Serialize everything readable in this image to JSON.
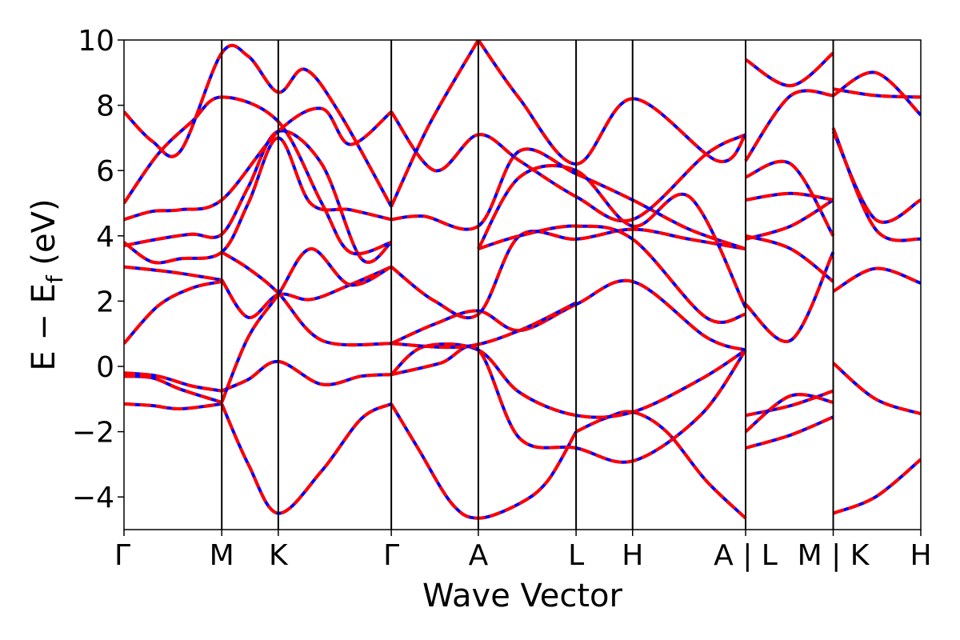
{
  "chart_data": {
    "type": "line",
    "title": "",
    "xlabel": "Wave Vector",
    "ylabel": "E − E_f (eV)",
    "ylabel_parts": {
      "main": "E − E",
      "sub": "f",
      "unit": " (eV)"
    },
    "ylim": [
      -5,
      10
    ],
    "yticks": [
      -4,
      -2,
      0,
      2,
      4,
      6,
      8,
      10
    ],
    "ytick_labels": [
      "−4",
      "−2",
      "0",
      "2",
      "4",
      "6",
      "8",
      "10"
    ],
    "xlim": [
      0,
      14.1
    ],
    "kpoints": [
      {
        "label": "Γ",
        "x": 0
      },
      {
        "label": "M",
        "x": 1.73
      },
      {
        "label": "K",
        "x": 2.73
      },
      {
        "label": "Γ",
        "x": 4.73
      },
      {
        "label": "A",
        "x": 6.27
      },
      {
        "label": "L",
        "x": 8.0
      },
      {
        "label": "H",
        "x": 9.0
      },
      {
        "label": "A | L",
        "x": 11.0
      },
      {
        "label": "M | K",
        "x": 12.55
      },
      {
        "label": "H",
        "x": 14.1
      }
    ],
    "vlines": [
      1.73,
      2.73,
      4.73,
      6.27,
      8.0,
      9.0,
      11.0,
      12.55
    ],
    "series_colors": {
      "solid": "#0000ff",
      "dashed": "#ff0000"
    },
    "grid": false,
    "legend": "none",
    "bands": [
      [
        [
          0,
          -1.15
        ],
        [
          0.5,
          -1.2
        ],
        [
          1.0,
          -1.3
        ],
        [
          1.73,
          -1.15
        ]
      ],
      [
        [
          1.73,
          -1.15
        ],
        [
          2.2,
          -3.0
        ],
        [
          2.73,
          -4.5
        ],
        [
          3.5,
          -3.2
        ],
        [
          4.2,
          -1.6
        ],
        [
          4.73,
          -1.15
        ]
      ],
      [
        [
          4.73,
          -1.15
        ],
        [
          5.2,
          -2.5
        ],
        [
          5.8,
          -4.2
        ],
        [
          6.27,
          -4.65
        ],
        [
          7.0,
          -4.2
        ],
        [
          7.5,
          -3.5
        ],
        [
          8.0,
          -2.0
        ]
      ],
      [
        [
          8.0,
          -2.0
        ],
        [
          8.5,
          -1.6
        ],
        [
          9.0,
          -1.4
        ],
        [
          9.6,
          -2.0
        ],
        [
          10.3,
          -3.5
        ],
        [
          11.0,
          -4.65
        ]
      ],
      [
        [
          0,
          -0.3
        ],
        [
          0.5,
          -0.35
        ],
        [
          1.0,
          -0.7
        ],
        [
          1.73,
          -1.1
        ]
      ],
      [
        [
          0,
          -0.2
        ],
        [
          0.6,
          -0.3
        ],
        [
          1.2,
          -0.6
        ],
        [
          1.73,
          -0.75
        ]
      ],
      [
        [
          1.73,
          -0.75
        ],
        [
          2.2,
          -0.4
        ],
        [
          2.73,
          0.15
        ],
        [
          3.5,
          -0.55
        ],
        [
          4.2,
          -0.3
        ],
        [
          4.73,
          -0.25
        ]
      ],
      [
        [
          4.73,
          -0.25
        ],
        [
          5.3,
          0.6
        ],
        [
          6.27,
          0.5
        ],
        [
          7.0,
          -0.8
        ],
        [
          8.0,
          -1.5
        ],
        [
          9.0,
          -1.4
        ],
        [
          10.2,
          -0.4
        ],
        [
          11.0,
          0.5
        ]
      ],
      [
        [
          4.73,
          -0.25
        ],
        [
          5.6,
          0.1
        ],
        [
          6.27,
          0.5
        ],
        [
          7.0,
          -2.2
        ],
        [
          8.0,
          -2.5
        ],
        [
          9.0,
          -2.9
        ],
        [
          10.2,
          -1.5
        ],
        [
          11.0,
          0.5
        ]
      ],
      [
        [
          0,
          0.7
        ],
        [
          0.6,
          1.85
        ],
        [
          1.2,
          2.4
        ],
        [
          1.73,
          2.6
        ]
      ],
      [
        [
          0,
          3.05
        ],
        [
          0.8,
          2.9
        ],
        [
          1.73,
          2.65
        ]
      ],
      [
        [
          1.73,
          2.65
        ],
        [
          2.2,
          1.5
        ],
        [
          2.73,
          2.2
        ],
        [
          3.3,
          2.05
        ],
        [
          4.0,
          2.5
        ],
        [
          4.73,
          3.05
        ]
      ],
      [
        [
          1.73,
          3.5
        ],
        [
          2.2,
          3.0
        ],
        [
          2.73,
          2.25
        ],
        [
          3.5,
          0.8
        ],
        [
          4.73,
          0.7
        ]
      ],
      [
        [
          4.73,
          0.7
        ],
        [
          5.5,
          1.3
        ],
        [
          6.27,
          1.7
        ],
        [
          7.0,
          1.1
        ],
        [
          8.0,
          1.9
        ],
        [
          9.0,
          2.6
        ],
        [
          10.3,
          0.9
        ],
        [
          11.0,
          0.5
        ]
      ],
      [
        [
          4.73,
          0.7
        ],
        [
          6.0,
          0.6
        ],
        [
          7.0,
          1.1
        ],
        [
          8.0,
          1.95
        ]
      ],
      [
        [
          1.73,
          -1.1
        ],
        [
          2.2,
          0.9
        ],
        [
          2.73,
          2.2
        ],
        [
          3.3,
          3.6
        ],
        [
          4.0,
          2.5
        ],
        [
          4.73,
          3.05
        ]
      ],
      [
        [
          4.73,
          3.05
        ],
        [
          5.5,
          2.0
        ],
        [
          6.27,
          1.6
        ],
        [
          7.0,
          4.0
        ],
        [
          8.0,
          3.9
        ],
        [
          9.0,
          4.2
        ],
        [
          10.0,
          3.9
        ],
        [
          11.0,
          3.6
        ]
      ],
      [
        [
          6.27,
          3.6
        ],
        [
          7.0,
          4.0
        ],
        [
          8.0,
          4.3
        ],
        [
          9.0,
          3.9
        ],
        [
          10.3,
          1.5
        ],
        [
          11.0,
          1.6
        ]
      ],
      [
        [
          0,
          3.8
        ],
        [
          0.5,
          3.2
        ],
        [
          1.0,
          3.3
        ],
        [
          1.73,
          3.5
        ],
        [
          2.2,
          5.0
        ],
        [
          2.73,
          7.0
        ],
        [
          3.3,
          5.0
        ],
        [
          4.0,
          4.8
        ],
        [
          4.73,
          4.5
        ]
      ],
      [
        [
          0,
          3.7
        ],
        [
          0.6,
          3.9
        ],
        [
          1.2,
          4.05
        ],
        [
          1.73,
          4.05
        ],
        [
          2.2,
          5.5
        ],
        [
          2.73,
          7.2
        ],
        [
          3.5,
          6.2
        ],
        [
          4.2,
          3.3
        ],
        [
          4.73,
          3.8
        ]
      ],
      [
        [
          0,
          4.5
        ],
        [
          0.5,
          4.75
        ],
        [
          1.0,
          4.8
        ],
        [
          1.73,
          5.1
        ],
        [
          2.73,
          7.2
        ],
        [
          3.5,
          7.9
        ],
        [
          4.0,
          6.8
        ],
        [
          4.73,
          7.8
        ]
      ],
      [
        [
          0,
          5.0
        ],
        [
          0.6,
          6.5
        ],
        [
          1.2,
          7.5
        ],
        [
          1.73,
          8.25
        ],
        [
          2.73,
          7.5
        ],
        [
          3.5,
          5.0
        ],
        [
          4.0,
          3.5
        ],
        [
          4.73,
          3.8
        ]
      ],
      [
        [
          0,
          7.8
        ],
        [
          0.5,
          6.9
        ],
        [
          1.0,
          6.6
        ],
        [
          1.73,
          9.6
        ],
        [
          2.2,
          9.5
        ],
        [
          2.73,
          8.4
        ],
        [
          3.2,
          9.1
        ],
        [
          3.8,
          7.8
        ],
        [
          4.73,
          4.9
        ]
      ],
      [
        [
          4.73,
          4.9
        ],
        [
          5.4,
          7.4
        ],
        [
          6.27,
          10.0
        ]
      ],
      [
        [
          4.73,
          4.5
        ],
        [
          5.3,
          4.6
        ],
        [
          6.27,
          4.3
        ],
        [
          7.0,
          6.6
        ],
        [
          8.0,
          5.9
        ],
        [
          9.0,
          5.1
        ],
        [
          10.0,
          4.2
        ],
        [
          11.0,
          3.6
        ]
      ],
      [
        [
          4.73,
          7.8
        ],
        [
          5.5,
          6.0
        ],
        [
          6.27,
          7.1
        ],
        [
          7.0,
          6.3
        ],
        [
          8.0,
          5.2
        ],
        [
          9.0,
          4.5
        ],
        [
          10.3,
          6.5
        ],
        [
          11.0,
          7.1
        ]
      ],
      [
        [
          6.27,
          3.6
        ],
        [
          7.0,
          5.8
        ],
        [
          8.0,
          6.0
        ],
        [
          9.0,
          4.3
        ],
        [
          10.0,
          5.2
        ],
        [
          11.0,
          1.8
        ]
      ],
      [
        [
          6.27,
          10.0
        ],
        [
          7.0,
          8.2
        ],
        [
          8.0,
          6.2
        ],
        [
          9.0,
          8.2
        ],
        [
          10.5,
          6.3
        ],
        [
          11.0,
          7.1
        ]
      ],
      [
        [
          11.0,
          -2.5
        ],
        [
          11.8,
          -2.1
        ],
        [
          12.55,
          -1.55
        ]
      ],
      [
        [
          11.0,
          -1.5
        ],
        [
          11.8,
          -1.2
        ],
        [
          12.55,
          -0.75
        ]
      ],
      [
        [
          11.0,
          -2.0
        ],
        [
          11.8,
          -0.9
        ],
        [
          12.55,
          -1.1
        ]
      ],
      [
        [
          11.0,
          1.9
        ],
        [
          11.8,
          0.8
        ],
        [
          12.55,
          3.5
        ]
      ],
      [
        [
          11.0,
          3.9
        ],
        [
          11.8,
          4.3
        ],
        [
          12.55,
          5.1
        ]
      ],
      [
        [
          11.0,
          5.1
        ],
        [
          11.8,
          5.3
        ],
        [
          12.55,
          5.1
        ]
      ],
      [
        [
          11.0,
          4.0
        ],
        [
          11.8,
          3.6
        ],
        [
          12.55,
          2.6
        ]
      ],
      [
        [
          11.0,
          5.8
        ],
        [
          11.8,
          6.2
        ],
        [
          12.55,
          4.0
        ]
      ],
      [
        [
          11.0,
          6.3
        ],
        [
          11.8,
          8.3
        ],
        [
          12.55,
          8.3
        ]
      ],
      [
        [
          11.0,
          9.4
        ],
        [
          11.8,
          8.6
        ],
        [
          12.55,
          9.6
        ]
      ],
      [
        [
          12.55,
          0.1
        ],
        [
          13.3,
          -1.0
        ],
        [
          14.1,
          -1.45
        ]
      ],
      [
        [
          12.55,
          -4.5
        ],
        [
          13.3,
          -4.0
        ],
        [
          14.1,
          -2.85
        ]
      ],
      [
        [
          12.55,
          2.3
        ],
        [
          13.3,
          3.0
        ],
        [
          14.1,
          2.55
        ]
      ],
      [
        [
          12.55,
          7.2
        ],
        [
          13.3,
          4.5
        ],
        [
          14.1,
          5.1
        ]
      ],
      [
        [
          12.55,
          7.3
        ],
        [
          13.3,
          4.2
        ],
        [
          14.1,
          3.9
        ]
      ],
      [
        [
          12.55,
          8.5
        ],
        [
          13.3,
          8.3
        ],
        [
          14.1,
          8.25
        ]
      ],
      [
        [
          12.55,
          8.3
        ],
        [
          13.3,
          9.0
        ],
        [
          14.1,
          7.7
        ]
      ]
    ]
  }
}
